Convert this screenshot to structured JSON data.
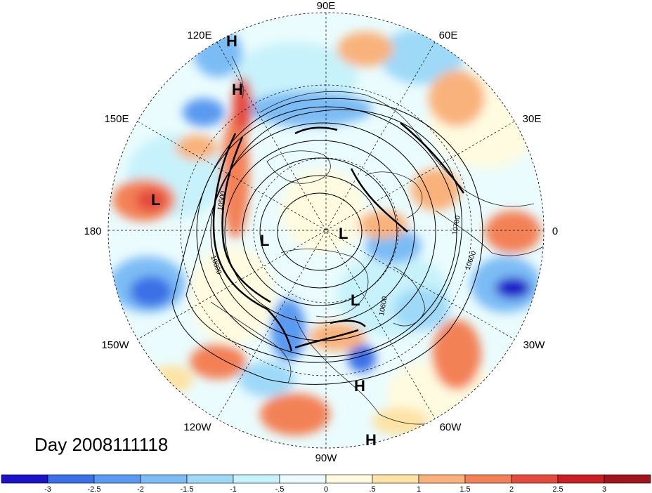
{
  "map": {
    "projection": "north-polar-stereographic",
    "field_shading": "standardized anomaly",
    "contour_labels": [
      "10600",
      "10700",
      "10800",
      "10500",
      "10600"
    ],
    "longitude_labels": [
      "90E",
      "60E",
      "30E",
      "0",
      "30W",
      "60W",
      "90W",
      "120W",
      "150W",
      "180",
      "150E",
      "120E"
    ],
    "pressure_centers": [
      {
        "type": "H",
        "region": "east-asia-north"
      },
      {
        "type": "H",
        "region": "east-asia-south"
      },
      {
        "type": "L",
        "region": "north-pacific"
      },
      {
        "type": "L",
        "region": "canadian-arctic"
      },
      {
        "type": "L",
        "region": "arctic-ocean"
      },
      {
        "type": "L",
        "region": "hudson-bay"
      },
      {
        "type": "H",
        "region": "atlantic-west"
      },
      {
        "type": "H",
        "region": "caribbean"
      }
    ]
  },
  "title": "Day 2008111118",
  "colorbar": {
    "colors": [
      "#1c12c8",
      "#3a6fe6",
      "#5a9af0",
      "#7bbcf5",
      "#9ed9f8",
      "#c8f2fb",
      "#eafcfd",
      "#fefbe0",
      "#fde3a5",
      "#f9b27c",
      "#f38157",
      "#e44b3c",
      "#c91e24",
      "#a0141b"
    ],
    "tick_labels": [
      "-3",
      "-2.5",
      "-2",
      "-1.5",
      "-1",
      "-.5",
      "0",
      ".5",
      "1",
      "1.5",
      "2",
      "2.5",
      "3"
    ]
  },
  "chart_data": {
    "type": "heatmap",
    "title": "Day 2008111118",
    "colorbar_range": [
      -3,
      3
    ],
    "colorbar_step": 0.5,
    "contour_values_labeled": [
      10500,
      10600,
      10700,
      10800
    ]
  }
}
